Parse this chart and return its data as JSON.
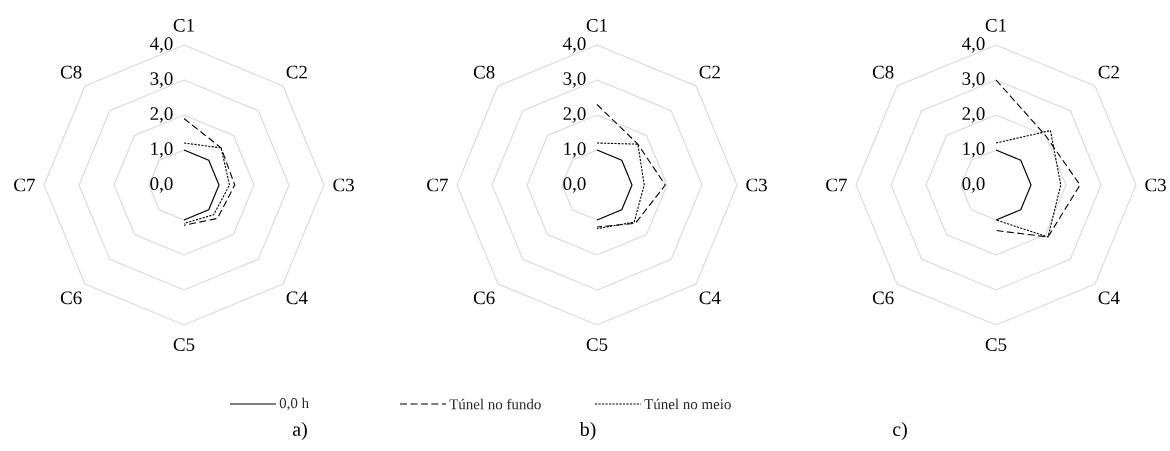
{
  "chart_data": [
    {
      "type": "radar",
      "title": "a)",
      "categories": [
        "C1",
        "C2",
        "C3",
        "C4",
        "C5",
        "C6",
        "C7",
        "C8"
      ],
      "ylim": [
        0,
        4
      ],
      "yticks": [
        {
          "value": 0,
          "label": "0,0"
        },
        {
          "value": 1,
          "label": "1,0"
        },
        {
          "value": 2,
          "label": "2,0"
        },
        {
          "value": 3,
          "label": "3,0"
        },
        {
          "value": 4,
          "label": "4,0"
        }
      ],
      "grid": true,
      "legend": "bottom",
      "series": [
        {
          "name": "0,0 h",
          "color": "#000000",
          "line_style": "solid",
          "values": [
            1.0,
            1.0,
            1.0,
            1.0,
            1.0,
            null,
            null,
            null
          ]
        },
        {
          "name": "Túnel no fundo",
          "color": "#000000",
          "line_style": "dashed",
          "values": [
            1.9,
            1.5,
            1.45,
            1.35,
            1.15,
            null,
            null,
            null
          ]
        },
        {
          "name": "Túnel no meio",
          "color": "#000000",
          "line_style": "dotted",
          "values": [
            1.2,
            1.5,
            1.3,
            1.2,
            1.1,
            null,
            null,
            null
          ]
        }
      ]
    },
    {
      "type": "radar",
      "title": "b)",
      "categories": [
        "C1",
        "C2",
        "C3",
        "C4",
        "C5",
        "C6",
        "C7",
        "C8"
      ],
      "ylim": [
        0,
        4
      ],
      "yticks": [
        {
          "value": 0,
          "label": "0,0"
        },
        {
          "value": 1,
          "label": "1,0"
        },
        {
          "value": 2,
          "label": "2,0"
        },
        {
          "value": 3,
          "label": "3,0"
        },
        {
          "value": 4,
          "label": "4,0"
        }
      ],
      "grid": true,
      "series": [
        {
          "color": "#000000",
          "line_style": "solid",
          "values": [
            1.0,
            1.0,
            1.0,
            1.0,
            1.0,
            null,
            null,
            null
          ]
        },
        {
          "color": "#000000",
          "line_style": "dashed",
          "values": [
            2.3,
            1.65,
            1.95,
            1.55,
            1.2,
            null,
            null,
            null
          ]
        },
        {
          "color": "#000000",
          "line_style": "dotted",
          "values": [
            1.2,
            1.65,
            1.35,
            1.5,
            1.25,
            null,
            null,
            null
          ]
        }
      ]
    },
    {
      "type": "radar",
      "title": "c)",
      "categories": [
        "C1",
        "C2",
        "C3",
        "C4",
        "C5",
        "C6",
        "C7",
        "C8"
      ],
      "ylim": [
        0,
        4
      ],
      "yticks": [
        {
          "value": 0,
          "label": "0,0"
        },
        {
          "value": 1,
          "label": "1,0"
        },
        {
          "value": 2,
          "label": "2,0"
        },
        {
          "value": 3,
          "label": "3,0"
        },
        {
          "value": 4,
          "label": "4,0"
        }
      ],
      "grid": true,
      "series": [
        {
          "color": "#000000",
          "line_style": "solid",
          "values": [
            1.0,
            1.0,
            1.0,
            1.0,
            1.0,
            null,
            null,
            null
          ]
        },
        {
          "color": "#000000",
          "line_style": "dashed",
          "values": [
            3.0,
            2.0,
            2.4,
            2.1,
            1.3,
            null,
            null,
            null
          ]
        },
        {
          "color": "#000000",
          "line_style": "dotted",
          "values": [
            1.2,
            2.2,
            1.85,
            2.1,
            1.0,
            null,
            null,
            null
          ]
        }
      ]
    }
  ]
}
